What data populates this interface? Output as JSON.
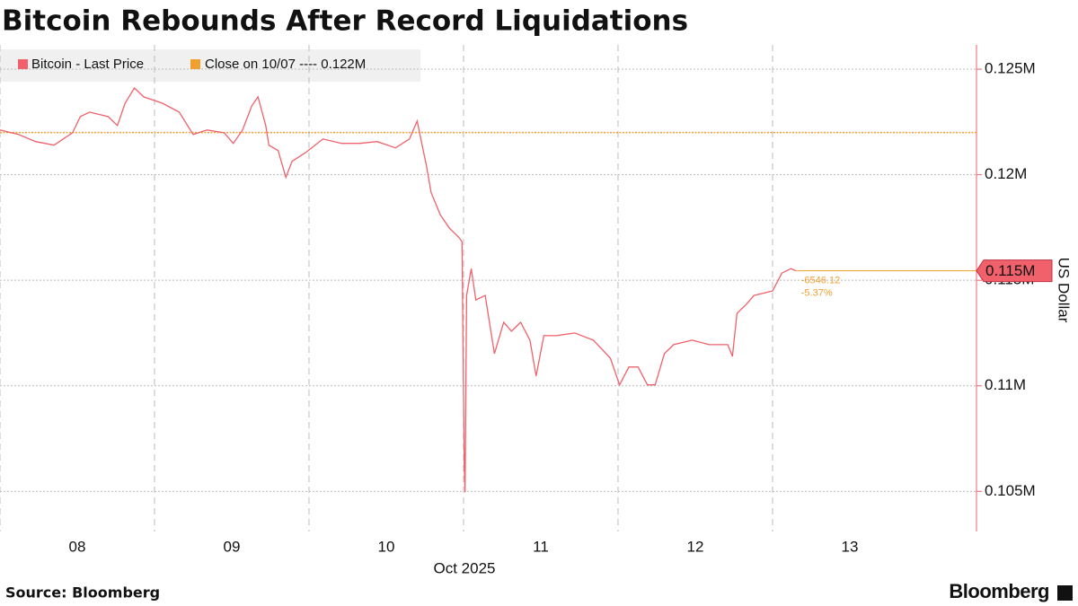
{
  "chart_data": {
    "type": "line",
    "title": "Bitcoin Rebounds After Record Liquidations",
    "x_axis_label": "Oct 2025",
    "y_axis_label": "US Dollar",
    "source": "Source: Bloomberg",
    "brand": "Bloomberg",
    "x": [
      8.0,
      8.12,
      8.23,
      8.35,
      8.47,
      8.52,
      8.58,
      8.7,
      8.76,
      8.81,
      8.87,
      8.93,
      9.05,
      9.16,
      9.25,
      9.34,
      9.45,
      9.51,
      9.57,
      9.63,
      9.67,
      9.72,
      9.74,
      9.8,
      9.85,
      9.89,
      9.98,
      10.09,
      10.21,
      10.33,
      10.44,
      10.56,
      10.65,
      10.7,
      10.73,
      10.76,
      10.79,
      10.85,
      10.91,
      10.97,
      10.99,
      11.005,
      11.01,
      11.02,
      11.05,
      11.08,
      11.14,
      11.2,
      11.26,
      11.31,
      11.37,
      11.43,
      11.47,
      11.52,
      11.6,
      11.72,
      11.84,
      11.95,
      12.01,
      12.07,
      12.13,
      12.19,
      12.24,
      12.3,
      12.36,
      12.48,
      12.59,
      12.71,
      12.74,
      12.77,
      12.83,
      12.88,
      13.0,
      13.06,
      13.12,
      13.15
    ],
    "series": [
      {
        "name": "Bitcoin - Last Price",
        "color": "#f0616b",
        "values": [
          122119,
          121907,
          121568,
          121399,
          121992,
          122754,
          122966,
          122754,
          122331,
          123390,
          124110,
          123687,
          123390,
          122966,
          121907,
          122119,
          121992,
          121483,
          122119,
          123263,
          123687,
          122331,
          121399,
          121144,
          119873,
          120636,
          121060,
          121695,
          121483,
          121483,
          121568,
          121271,
          121695,
          122543,
          121483,
          120424,
          119153,
          118094,
          117458,
          117034,
          116823,
          106230,
          104959,
          114280,
          115551,
          114069,
          114280,
          111526,
          113009,
          112586,
          113009,
          112162,
          110467,
          112374,
          112374,
          112501,
          112162,
          111314,
          110043,
          110891,
          110891,
          110043,
          110043,
          111526,
          111950,
          112162,
          111950,
          111950,
          111399,
          113433,
          113857,
          114280,
          114492,
          115340,
          115551,
          115450
        ]
      }
    ],
    "reference": {
      "name": "Close on 10/07 ---- 0.122M",
      "value": 122000,
      "color": "#f0a030"
    },
    "annotations": {
      "last_price": "0.115M",
      "change": "-6546.12",
      "change_pct": "-5.37%"
    },
    "xlim": [
      8,
      14.32
    ],
    "xticks": [
      {
        "value": 8.5,
        "label": "08"
      },
      {
        "value": 9.5,
        "label": "09"
      },
      {
        "value": 10.5,
        "label": "10"
      },
      {
        "value": 11.5,
        "label": "11"
      },
      {
        "value": 12.5,
        "label": "12"
      },
      {
        "value": 13.5,
        "label": "13"
      }
    ],
    "x_gridlines": [
      8,
      9,
      10,
      11,
      12,
      13
    ],
    "ylim": [
      103100,
      126150
    ],
    "yticks": [
      {
        "value": 105000,
        "label": "0.105M"
      },
      {
        "value": 110000,
        "label": "0.11M"
      },
      {
        "value": 115000,
        "label": "0.115M"
      },
      {
        "value": 120000,
        "label": "0.12M"
      },
      {
        "value": 125000,
        "label": "0.125M"
      }
    ],
    "grid": true
  }
}
